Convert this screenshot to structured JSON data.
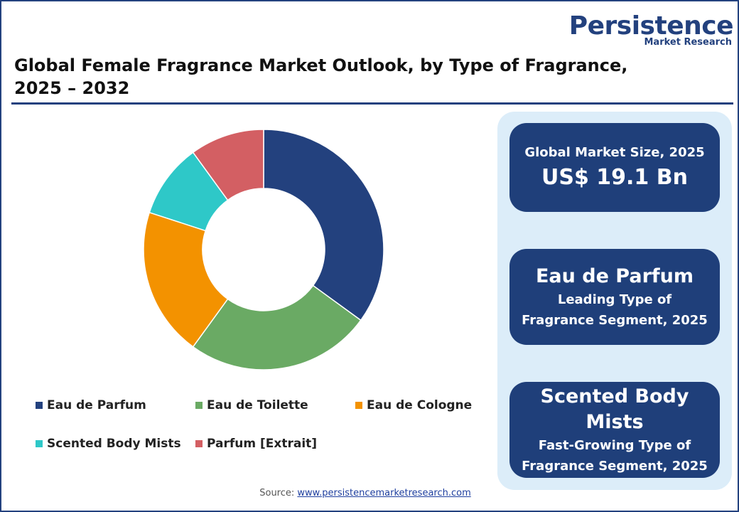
{
  "logo": {
    "name": "Persistence",
    "tagline": "Market Research"
  },
  "chart_data": {
    "type": "donut",
    "title": "Global Female Fragrance Market Outlook, by Type of Fragrance, 2025 – 2032",
    "categories": [
      "Eau de Parfum",
      "Eau de Toilette",
      "Eau de Cologne",
      "Scented Body Mists",
      "Parfum [Extrait]"
    ],
    "values": [
      35,
      25,
      20,
      10,
      10
    ],
    "colors": [
      "#23417e",
      "#6aaa64",
      "#f39200",
      "#2ec8c8",
      "#d35f63"
    ]
  },
  "cards": [
    {
      "label": "Global Market Size, 2025",
      "value": "US$ 19.1 Bn"
    },
    {
      "value": "Eau de Parfum",
      "label": "Leading Type of Fragrance Segment, 2025"
    },
    {
      "value": "Scented Body Mists",
      "label": "Fast-Growing Type of Fragrance  Segment, 2025"
    }
  ],
  "source": {
    "prefix": "Source:",
    "link": "www.persistencemarketresearch.com"
  }
}
